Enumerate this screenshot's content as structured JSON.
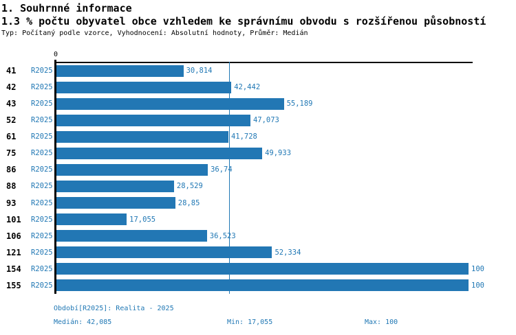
{
  "header": {
    "title": "1. Souhrnné informace",
    "subtitle": "1.3 % počtu obyvatel obce vzhledem ke správnímu obvodu s rozšířenou působností",
    "meta": "Typ: Počítaný podle vzorce, Vyhodnocení: Absolutní hodnoty, Průměr: Medián"
  },
  "colors": {
    "accent": "#1f77b4",
    "bar": "#2277b4",
    "axis": "#000000",
    "background": "#ffffff"
  },
  "chart_data": {
    "type": "bar",
    "orientation": "horizontal",
    "title": "",
    "xlabel": "",
    "ylabel": "",
    "xlim": [
      0,
      100
    ],
    "x_ticks": [
      "0"
    ],
    "grid": false,
    "legend_position": "none",
    "series_label": "R2025",
    "categories": [
      "41",
      "42",
      "43",
      "52",
      "61",
      "75",
      "86",
      "88",
      "93",
      "101",
      "106",
      "121",
      "154",
      "155"
    ],
    "values": [
      30.814,
      42.442,
      55.189,
      47.073,
      41.728,
      49.933,
      36.74,
      28.529,
      28.85,
      17.055,
      36.523,
      52.334,
      100,
      100
    ],
    "value_labels": [
      "30,814",
      "42,442",
      "55,189",
      "47,073",
      "41,728",
      "49,933",
      "36,74",
      "28,529",
      "28,85",
      "17,055",
      "36,523",
      "52,334",
      "100",
      "100"
    ],
    "median_value": 42.085,
    "median_label": "42,085"
  },
  "footer": {
    "period": "Období[R2025]: Realita - 2025",
    "median": "Medián: 42,085",
    "min": "Min: 17,055",
    "max": "Max: 100"
  }
}
